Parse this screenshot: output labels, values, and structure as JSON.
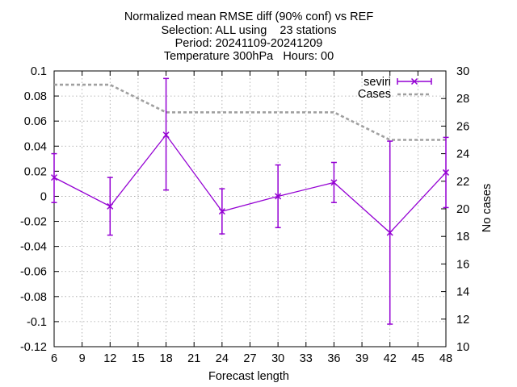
{
  "chart_data": {
    "type": "line",
    "title_lines": [
      "Normalized mean RMSE diff (90% conf) vs REF",
      "Selection: ALL using    23 stations",
      "Period: 20241109-20241209",
      "Temperature 300hPa   Hours: 00"
    ],
    "xlabel": "Forecast length",
    "ylabel": "",
    "y2label": "No cases",
    "xlim": [
      6,
      48
    ],
    "xticks": [
      6,
      9,
      12,
      15,
      18,
      21,
      24,
      27,
      30,
      33,
      36,
      39,
      42,
      45,
      48
    ],
    "ylim": [
      -0.12,
      0.1
    ],
    "yticks": [
      -0.12,
      -0.1,
      -0.08,
      -0.06,
      -0.04,
      -0.02,
      0,
      0.02,
      0.04,
      0.06,
      0.08,
      0.1
    ],
    "ytick_labels": [
      "-0.12",
      "-0.1",
      "-0.08",
      "-0.06",
      "-0.04",
      "-0.02",
      "0",
      "0.02",
      "0.04",
      "0.06",
      "0.08",
      "0.1"
    ],
    "y2lim": [
      10,
      30
    ],
    "y2ticks": [
      10,
      12,
      14,
      16,
      18,
      20,
      22,
      24,
      26,
      28,
      30
    ],
    "grid": true,
    "legend_position": "top-right",
    "series": [
      {
        "name": "seviri",
        "axis": "y",
        "color": "#9400d3",
        "style": "line-errorbars",
        "x": [
          6,
          12,
          18,
          24,
          30,
          36,
          42,
          48
        ],
        "y": [
          0.015,
          -0.008,
          0.049,
          -0.012,
          0.0,
          0.011,
          -0.029,
          0.019
        ],
        "err_low": [
          -0.005,
          -0.031,
          0.005,
          -0.03,
          -0.025,
          -0.005,
          -0.102,
          -0.009
        ],
        "err_high": [
          0.034,
          0.015,
          0.094,
          0.006,
          0.025,
          0.027,
          0.044,
          0.047
        ]
      },
      {
        "name": "Cases",
        "axis": "y2",
        "color": "#a0a0a0",
        "style": "dashed",
        "x": [
          6,
          12,
          18,
          24,
          30,
          36,
          42,
          48
        ],
        "y": [
          29,
          29,
          27,
          27,
          27,
          27,
          25,
          25
        ]
      }
    ]
  }
}
